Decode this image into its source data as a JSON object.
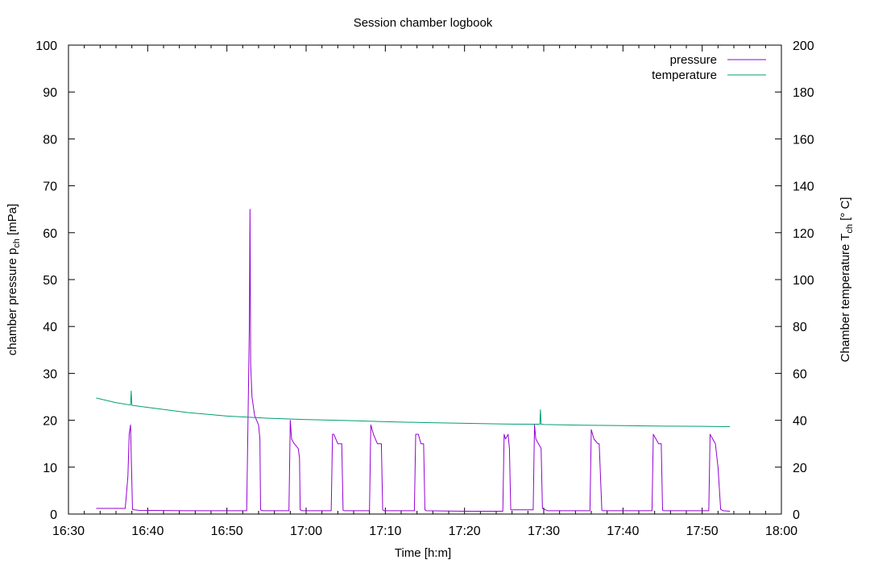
{
  "chart_data": {
    "type": "line",
    "title": "Session chamber logbook",
    "xlabel": "Time [h:m]",
    "ylabel_left": {
      "text": "chamber pressure p",
      "sub": "ch",
      "unit": " [mPa]"
    },
    "ylabel_right": {
      "text": "Chamber temperature T",
      "sub": "ch",
      "unit": " [° C]"
    },
    "x_range_minutes": [
      990,
      1080
    ],
    "x_ticks": [
      "16:30",
      "16:40",
      "16:50",
      "17:00",
      "17:10",
      "17:20",
      "17:30",
      "17:40",
      "17:50",
      "18:00"
    ],
    "ylim_left": [
      0,
      100
    ],
    "ylim_right": [
      0,
      200
    ],
    "y_ticks_left": [
      "0",
      "10",
      "20",
      "30",
      "40",
      "50",
      "60",
      "70",
      "80",
      "90",
      "100"
    ],
    "y_ticks_right": [
      "0",
      "20",
      "40",
      "60",
      "80",
      "100",
      "120",
      "140",
      "160",
      "180",
      "200"
    ],
    "grid": false,
    "legend": "top-right",
    "series": [
      {
        "name": "pressure",
        "axis": "left",
        "color": "#9400d3",
        "x_time": [
          "16:33:30",
          "16:37:10",
          "16:37:30",
          "16:37:40",
          "16:37:50",
          "16:38:05",
          "16:38:20",
          "16:38:50",
          "16:45:00",
          "16:52:30",
          "16:52:50",
          "16:52:55",
          "16:53:00",
          "16:53:10",
          "16:53:30",
          "16:54:00",
          "16:54:10",
          "16:54:15",
          "16:54:30",
          "16:57:50",
          "16:58:00",
          "16:58:10",
          "16:58:30",
          "16:59:00",
          "16:59:10",
          "16:59:15",
          "16:59:30",
          "17:03:10",
          "17:03:20",
          "17:03:30",
          "17:04:00",
          "17:04:30",
          "17:04:40",
          "17:04:50",
          "17:08:00",
          "17:08:10",
          "17:08:30",
          "17:09:00",
          "17:09:30",
          "17:09:40",
          "17:09:50",
          "17:13:40",
          "17:13:50",
          "17:14:10",
          "17:14:30",
          "17:14:50",
          "17:15:00",
          "17:15:10",
          "17:20:00",
          "17:24:50",
          "17:25:00",
          "17:25:10",
          "17:25:30",
          "17:25:40",
          "17:25:50",
          "17:28:40",
          "17:28:50",
          "17:29:00",
          "17:29:20",
          "17:29:40",
          "17:29:50",
          "17:30:30",
          "17:35:50",
          "17:36:00",
          "17:36:20",
          "17:36:50",
          "17:37:00",
          "17:37:20",
          "17:37:30",
          "17:43:40",
          "17:43:50",
          "17:44:10",
          "17:44:30",
          "17:44:50",
          "17:45:00",
          "17:45:10",
          "17:50:50",
          "17:51:00",
          "17:51:20",
          "17:51:40",
          "17:52:00",
          "17:52:20",
          "17:52:40",
          "17:53:30"
        ],
        "values": [
          1.2,
          1.2,
          8,
          17,
          19,
          1.0,
          0.9,
          0.8,
          0.7,
          0.7,
          40,
          65,
          32,
          25,
          21,
          19,
          16,
          0.9,
          0.7,
          0.7,
          20,
          16,
          15,
          14,
          12,
          0.9,
          0.7,
          0.7,
          17,
          17,
          15,
          15,
          0.8,
          0.7,
          0.7,
          19,
          17,
          15,
          15,
          0.9,
          0.7,
          0.7,
          17,
          17,
          15,
          15,
          0.9,
          0.7,
          0.6,
          0.6,
          17,
          16,
          17,
          14,
          0.9,
          0.9,
          19,
          16,
          15,
          14,
          1.2,
          0.7,
          0.7,
          18,
          16,
          15,
          15,
          0.8,
          0.7,
          0.7,
          17,
          16,
          15,
          15,
          0.8,
          0.7,
          0.7,
          17,
          16,
          15,
          10,
          1.0,
          0.7,
          0.6
        ]
      },
      {
        "name": "temperature",
        "axis": "right",
        "color": "#009e73",
        "x_time": [
          "16:33:30",
          "16:36:00",
          "16:37:50",
          "16:37:55",
          "16:38:00",
          "16:40:00",
          "16:45:00",
          "16:50:00",
          "16:55:00",
          "17:00:00",
          "17:05:00",
          "17:10:00",
          "17:15:00",
          "17:20:00",
          "17:25:00",
          "17:29:30",
          "17:29:35",
          "17:29:40",
          "17:30:00",
          "17:35:00",
          "17:40:00",
          "17:45:00",
          "17:50:00",
          "17:53:30"
        ],
        "values": [
          49.5,
          47.5,
          46.5,
          52.5,
          46.4,
          45.5,
          43.3,
          41.8,
          40.9,
          40.3,
          39.9,
          39.4,
          39.0,
          38.7,
          38.4,
          38.3,
          44.5,
          38.3,
          38.2,
          37.9,
          37.7,
          37.5,
          37.4,
          37.3
        ]
      }
    ]
  }
}
